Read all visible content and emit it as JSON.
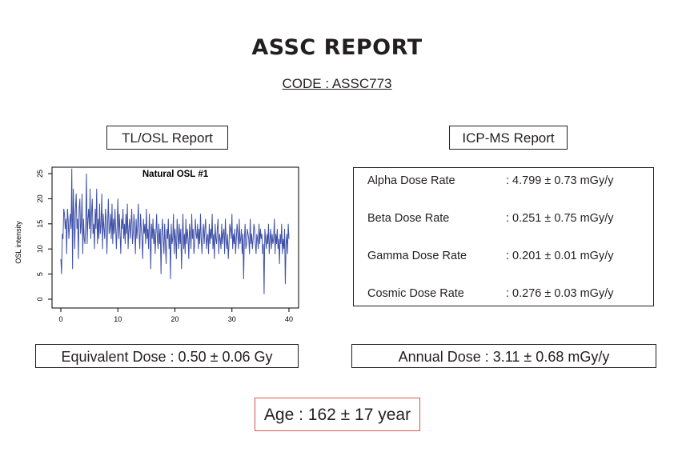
{
  "report": {
    "title": "ASSC REPORT",
    "code": "CODE : ASSC773"
  },
  "tl_osl": {
    "label": "TL/OSL Report",
    "equivalent_dose": "Equivalent Dose : 0.50 ± 0.06 Gy"
  },
  "icp_ms": {
    "label": "ICP-MS Report",
    "rates": [
      {
        "name": "Alpha Dose Rate",
        "value": ": 4.799 ± 0.73 mGy/y"
      },
      {
        "name": "Beta Dose Rate",
        "value": ": 0.251 ± 0.75 mGy/y"
      },
      {
        "name": "Gamma Dose Rate",
        "value": ": 0.201 ± 0.01 mGy/y"
      },
      {
        "name": "Cosmic Dose Rate",
        "value": ": 0.276 ± 0.03 mGy/y"
      }
    ],
    "annual_dose": "Annual Dose : 3.11 ± 0.68 mGy/y"
  },
  "age": "Age : 162 ± 17 year",
  "colors": {
    "line": "#3f51a8",
    "age_border": "#d9534f"
  },
  "chart_data": {
    "type": "line",
    "title": "Natural OSL #1",
    "xlabel": "",
    "ylabel": "OSL intensity",
    "xlim": [
      0,
      40
    ],
    "ylim": [
      0,
      25
    ],
    "xticks": [
      "0",
      "10",
      "20",
      "30",
      "40"
    ],
    "yticks": [
      "0",
      "5",
      "10",
      "15",
      "20",
      "25"
    ],
    "series": [
      {
        "values": [
          8,
          5,
          13,
          12,
          18,
          17,
          14,
          16,
          9,
          18,
          16,
          12,
          15,
          17,
          14,
          26,
          6,
          22,
          16,
          10,
          18,
          21,
          14,
          16,
          8,
          18,
          20,
          13,
          15,
          21,
          9,
          16,
          12,
          11,
          15,
          25,
          11,
          16,
          18,
          14,
          22,
          12,
          17,
          20,
          13,
          15,
          10,
          18,
          14,
          22,
          11,
          16,
          12,
          19,
          13,
          15,
          21,
          10,
          17,
          14,
          12,
          18,
          16,
          9,
          15,
          20,
          13,
          14,
          17,
          12,
          19,
          11,
          16,
          13,
          18,
          14,
          10,
          15,
          20,
          12,
          17,
          13,
          9,
          16,
          14,
          18,
          12,
          15,
          11,
          17,
          13,
          19,
          10,
          14,
          16,
          12,
          15,
          18,
          11,
          13,
          17,
          14,
          9,
          16,
          12,
          15,
          19,
          13,
          10,
          17,
          14,
          12,
          8,
          16,
          13,
          15,
          11,
          18,
          12,
          14,
          10,
          17,
          13,
          6,
          15,
          12,
          16,
          11,
          14,
          9,
          13,
          17,
          12,
          10,
          15,
          11,
          14,
          5,
          13,
          16,
          12,
          9,
          15,
          11,
          7,
          14,
          12,
          16,
          10,
          13,
          4,
          15,
          11,
          12,
          17,
          9,
          14,
          12,
          8,
          16,
          13,
          10,
          15,
          11,
          14,
          6,
          12,
          17,
          10,
          13,
          9,
          16,
          11,
          14,
          12,
          8,
          15,
          13,
          10,
          17,
          12,
          14,
          9,
          11,
          16,
          13,
          12,
          15,
          10,
          14,
          11,
          17,
          12,
          9,
          13,
          15,
          11,
          14,
          16,
          10,
          12,
          13,
          9,
          15,
          11,
          14,
          12,
          17,
          10,
          13,
          8,
          15,
          12,
          11,
          14,
          16,
          9,
          13,
          12,
          10,
          15,
          11,
          13,
          14,
          9,
          16,
          12,
          10,
          13,
          8,
          11,
          15,
          14,
          12,
          17,
          10,
          13,
          11,
          14,
          9,
          12,
          15,
          13,
          10,
          16,
          11,
          12,
          14,
          9,
          13,
          4,
          12,
          15,
          10,
          11,
          14,
          13,
          12,
          9,
          16,
          11,
          13,
          10,
          12,
          15,
          14,
          11,
          9,
          13,
          12,
          10,
          15,
          11,
          14,
          12,
          13,
          9,
          11,
          1,
          14,
          12,
          10,
          13,
          11,
          15,
          9,
          12,
          14,
          10,
          13,
          11,
          12,
          16,
          9,
          13,
          11,
          14,
          10,
          12,
          7,
          13,
          11,
          15,
          9,
          12,
          10,
          14,
          3,
          11,
          13,
          9,
          15,
          12
        ]
      }
    ]
  }
}
